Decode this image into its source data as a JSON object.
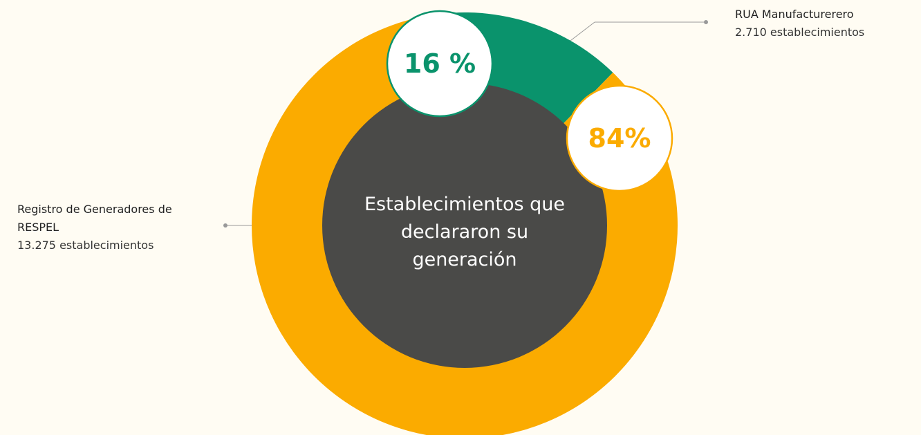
{
  "chart_data": {
    "type": "donut",
    "center_label": "Establecimientos que declararon su generación",
    "categories": [
      "RUA Manufacturerero",
      "Registro de Generadores de RESPEL"
    ],
    "values": [
      16,
      84
    ],
    "value_labels": [
      "16 %",
      "84%"
    ],
    "count_labels": [
      "2.710 establecimientos",
      "13.275 establecimientos"
    ],
    "colors": [
      "#0a936c",
      "#fbab00"
    ]
  }
}
